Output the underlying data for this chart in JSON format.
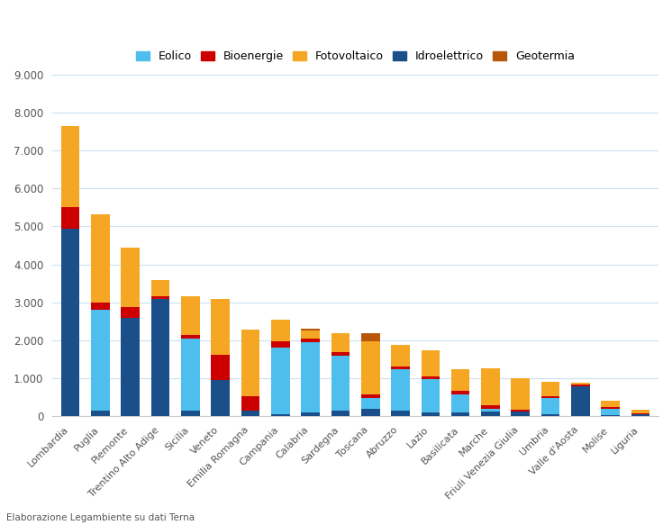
{
  "regions": [
    "Lombardia",
    "Puglia",
    "Piemonte",
    "Trentino Alto Adige",
    "Sicilia",
    "Veneto",
    "Emilia Romagna",
    "Campania",
    "Calabria",
    "Sardegna",
    "Toscana",
    "Abruzzo",
    "Lazio",
    "Basilicata",
    "Marche",
    "Friuli Venezia Giulia",
    "Umbria",
    "Valle d'Aosta",
    "Molise",
    "Liguria"
  ],
  "series": {
    "Idroelettrico": [
      4950,
      150,
      2600,
      3100,
      150,
      950,
      150,
      50,
      100,
      150,
      200,
      150,
      100,
      100,
      120,
      120,
      50,
      800,
      30,
      50
    ],
    "Eolico": [
      0,
      2650,
      0,
      0,
      1900,
      0,
      0,
      1750,
      1850,
      1450,
      290,
      1100,
      870,
      480,
      80,
      0,
      430,
      0,
      170,
      0
    ],
    "Bioenergie": [
      550,
      200,
      280,
      50,
      90,
      680,
      380,
      180,
      90,
      90,
      90,
      50,
      90,
      90,
      90,
      50,
      50,
      40,
      40,
      40
    ],
    "Fotovoltaico": [
      2150,
      2330,
      1560,
      430,
      1020,
      1450,
      1750,
      570,
      220,
      490,
      1400,
      570,
      680,
      580,
      980,
      830,
      380,
      40,
      180,
      90
    ],
    "Geotermia": [
      0,
      0,
      0,
      0,
      0,
      0,
      0,
      0,
      40,
      0,
      200,
      0,
      0,
      0,
      0,
      0,
      0,
      0,
      0,
      0
    ]
  },
  "colors": {
    "Idroelettrico": "#1B4F8A",
    "Eolico": "#4DBEEE",
    "Bioenergie": "#CC0000",
    "Fotovoltaico": "#F5A623",
    "Geotermia": "#B8570A"
  },
  "stack_order": [
    "Idroelettrico",
    "Eolico",
    "Bioenergie",
    "Fotovoltaico",
    "Geotermia"
  ],
  "legend_order": [
    "Eolico",
    "Bioenergie",
    "Fotovoltaico",
    "Idroelettrico",
    "Geotermia"
  ],
  "ylim": [
    0,
    9000
  ],
  "yticks": [
    0,
    1000,
    2000,
    3000,
    4000,
    5000,
    6000,
    7000,
    8000,
    9000
  ],
  "background_color": "#ffffff",
  "grid_color": "#cce0f0",
  "footnote": "Elaborazione Legambiente su dati Terna"
}
